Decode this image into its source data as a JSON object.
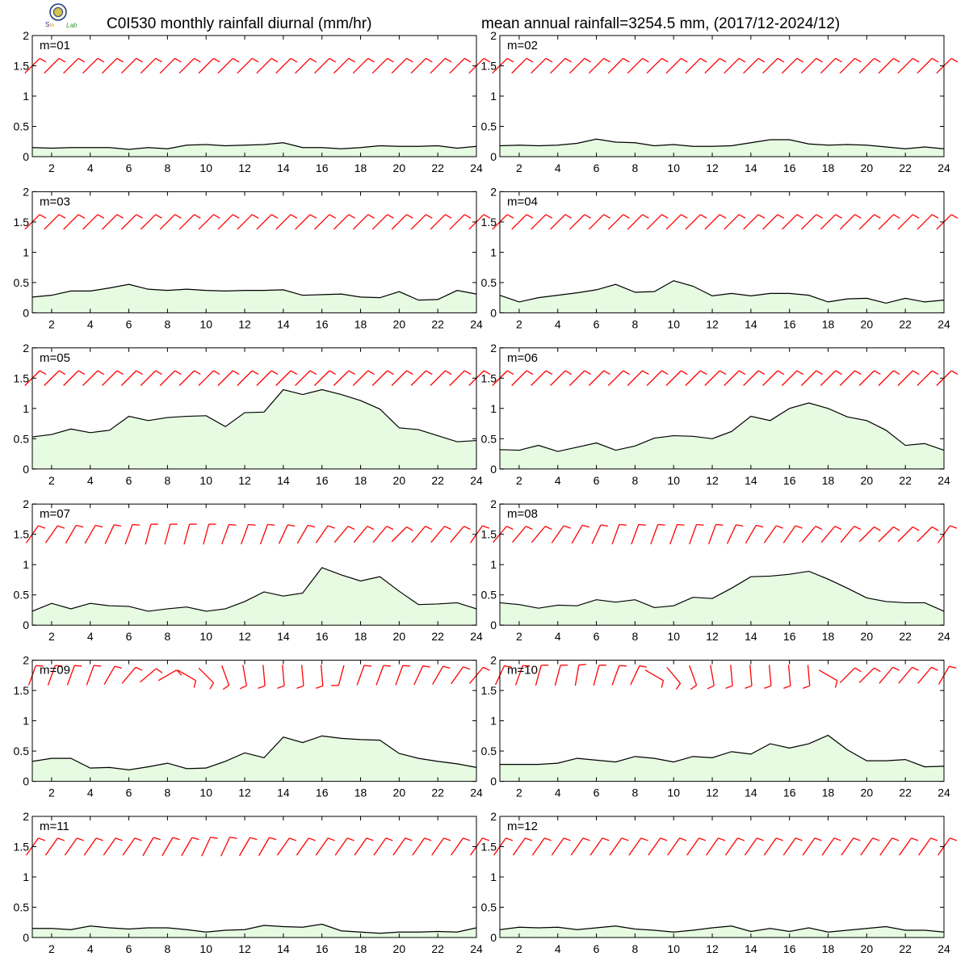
{
  "header": {
    "title_left": "C0I530 monthly rainfall diurnal (mm/hr)",
    "title_right": "mean annual rainfall=3254.5 mm, (2017/12-2024/12)"
  },
  "colors": {
    "rain_fill": "#e6fbe2",
    "rain_line": "#000000",
    "wind_barb": "#ff0000",
    "frame": "#000000"
  },
  "chart_data": [
    {
      "type": "area",
      "label": "m=01",
      "x": [
        1,
        2,
        3,
        4,
        5,
        6,
        7,
        8,
        9,
        10,
        11,
        12,
        13,
        14,
        15,
        16,
        17,
        18,
        19,
        20,
        21,
        22,
        23,
        24
      ],
      "values": [
        0.15,
        0.14,
        0.15,
        0.15,
        0.15,
        0.12,
        0.15,
        0.13,
        0.19,
        0.2,
        0.18,
        0.19,
        0.2,
        0.23,
        0.15,
        0.15,
        0.13,
        0.15,
        0.18,
        0.17,
        0.17,
        0.18,
        0.14,
        0.17
      ],
      "xticks": [
        2,
        4,
        6,
        8,
        10,
        12,
        14,
        16,
        18,
        20,
        22,
        24
      ],
      "yticks": [
        0,
        0.5,
        1,
        1.5,
        2
      ],
      "xlim": [
        1,
        24
      ],
      "ylim": [
        0,
        2
      ]
    },
    {
      "type": "area",
      "label": "m=02",
      "x": [
        1,
        2,
        3,
        4,
        5,
        6,
        7,
        8,
        9,
        10,
        11,
        12,
        13,
        14,
        15,
        16,
        17,
        18,
        19,
        20,
        21,
        22,
        23,
        24
      ],
      "values": [
        0.18,
        0.19,
        0.18,
        0.19,
        0.22,
        0.29,
        0.24,
        0.23,
        0.18,
        0.2,
        0.17,
        0.17,
        0.18,
        0.23,
        0.28,
        0.28,
        0.21,
        0.19,
        0.2,
        0.19,
        0.16,
        0.13,
        0.16,
        0.13
      ],
      "xticks": [
        2,
        4,
        6,
        8,
        10,
        12,
        14,
        16,
        18,
        20,
        22,
        24
      ],
      "yticks": [
        0,
        0.5,
        1,
        1.5,
        2
      ],
      "xlim": [
        1,
        24
      ],
      "ylim": [
        0,
        2
      ]
    },
    {
      "type": "area",
      "label": "m=03",
      "x": [
        1,
        2,
        3,
        4,
        5,
        6,
        7,
        8,
        9,
        10,
        11,
        12,
        13,
        14,
        15,
        16,
        17,
        18,
        19,
        20,
        21,
        22,
        23,
        24
      ],
      "values": [
        0.26,
        0.29,
        0.36,
        0.36,
        0.41,
        0.47,
        0.39,
        0.37,
        0.39,
        0.37,
        0.36,
        0.37,
        0.37,
        0.38,
        0.29,
        0.3,
        0.31,
        0.26,
        0.25,
        0.35,
        0.21,
        0.22,
        0.37,
        0.31
      ],
      "xticks": [
        2,
        4,
        6,
        8,
        10,
        12,
        14,
        16,
        18,
        20,
        22,
        24
      ],
      "yticks": [
        0,
        0.5,
        1,
        1.5,
        2
      ],
      "xlim": [
        1,
        24
      ],
      "ylim": [
        0,
        2
      ]
    },
    {
      "type": "area",
      "label": "m=04",
      "x": [
        1,
        2,
        3,
        4,
        5,
        6,
        7,
        8,
        9,
        10,
        11,
        12,
        13,
        14,
        15,
        16,
        17,
        18,
        19,
        20,
        21,
        22,
        23,
        24
      ],
      "values": [
        0.29,
        0.18,
        0.25,
        0.29,
        0.33,
        0.38,
        0.47,
        0.34,
        0.35,
        0.53,
        0.44,
        0.28,
        0.32,
        0.28,
        0.32,
        0.32,
        0.29,
        0.18,
        0.23,
        0.24,
        0.16,
        0.24,
        0.18,
        0.21
      ],
      "xticks": [
        2,
        4,
        6,
        8,
        10,
        12,
        14,
        16,
        18,
        20,
        22,
        24
      ],
      "yticks": [
        0,
        0.5,
        1,
        1.5,
        2
      ],
      "xlim": [
        1,
        24
      ],
      "ylim": [
        0,
        2
      ]
    },
    {
      "type": "area",
      "label": "m=05",
      "x": [
        1,
        2,
        3,
        4,
        5,
        6,
        7,
        8,
        9,
        10,
        11,
        12,
        13,
        14,
        15,
        16,
        17,
        18,
        19,
        20,
        21,
        22,
        23,
        24
      ],
      "values": [
        0.53,
        0.57,
        0.66,
        0.6,
        0.64,
        0.87,
        0.8,
        0.85,
        0.87,
        0.88,
        0.7,
        0.93,
        0.94,
        1.31,
        1.23,
        1.31,
        1.23,
        1.13,
        0.99,
        0.68,
        0.65,
        0.55,
        0.45,
        0.47
      ],
      "xticks": [
        2,
        4,
        6,
        8,
        10,
        12,
        14,
        16,
        18,
        20,
        22,
        24
      ],
      "yticks": [
        0,
        0.5,
        1,
        1.5,
        2
      ],
      "xlim": [
        1,
        24
      ],
      "ylim": [
        0,
        2
      ]
    },
    {
      "type": "area",
      "label": "m=06",
      "x": [
        1,
        2,
        3,
        4,
        5,
        6,
        7,
        8,
        9,
        10,
        11,
        12,
        13,
        14,
        15,
        16,
        17,
        18,
        19,
        20,
        21,
        22,
        23,
        24
      ],
      "values": [
        0.32,
        0.31,
        0.39,
        0.29,
        0.36,
        0.43,
        0.31,
        0.38,
        0.51,
        0.55,
        0.54,
        0.5,
        0.62,
        0.87,
        0.8,
        1.0,
        1.09,
        1.0,
        0.86,
        0.8,
        0.64,
        0.39,
        0.42,
        0.31
      ],
      "xticks": [
        2,
        4,
        6,
        8,
        10,
        12,
        14,
        16,
        18,
        20,
        22,
        24
      ],
      "yticks": [
        0,
        0.5,
        1,
        1.5,
        2
      ],
      "xlim": [
        1,
        24
      ],
      "ylim": [
        0,
        2
      ]
    },
    {
      "type": "area",
      "label": "m=07",
      "x": [
        1,
        2,
        3,
        4,
        5,
        6,
        7,
        8,
        9,
        10,
        11,
        12,
        13,
        14,
        15,
        16,
        17,
        18,
        19,
        20,
        21,
        22,
        23,
        24
      ],
      "values": [
        0.23,
        0.36,
        0.27,
        0.36,
        0.32,
        0.31,
        0.23,
        0.27,
        0.3,
        0.23,
        0.27,
        0.39,
        0.55,
        0.48,
        0.53,
        0.95,
        0.83,
        0.73,
        0.8,
        0.56,
        0.34,
        0.35,
        0.37,
        0.27
      ],
      "xticks": [
        2,
        4,
        6,
        8,
        10,
        12,
        14,
        16,
        18,
        20,
        22,
        24
      ],
      "yticks": [
        0,
        0.5,
        1,
        1.5,
        2
      ],
      "xlim": [
        1,
        24
      ],
      "ylim": [
        0,
        2
      ]
    },
    {
      "type": "area",
      "label": "m=08",
      "x": [
        1,
        2,
        3,
        4,
        5,
        6,
        7,
        8,
        9,
        10,
        11,
        12,
        13,
        14,
        15,
        16,
        17,
        18,
        19,
        20,
        21,
        22,
        23,
        24
      ],
      "values": [
        0.37,
        0.34,
        0.28,
        0.33,
        0.32,
        0.42,
        0.38,
        0.42,
        0.29,
        0.32,
        0.46,
        0.44,
        0.61,
        0.8,
        0.81,
        0.84,
        0.89,
        0.76,
        0.61,
        0.45,
        0.39,
        0.37,
        0.37,
        0.23
      ],
      "xticks": [
        2,
        4,
        6,
        8,
        10,
        12,
        14,
        16,
        18,
        20,
        22,
        24
      ],
      "yticks": [
        0,
        0.5,
        1,
        1.5,
        2
      ],
      "xlim": [
        1,
        24
      ],
      "ylim": [
        0,
        2
      ]
    },
    {
      "type": "area",
      "label": "m=09",
      "x": [
        1,
        2,
        3,
        4,
        5,
        6,
        7,
        8,
        9,
        10,
        11,
        12,
        13,
        14,
        15,
        16,
        17,
        18,
        19,
        20,
        21,
        22,
        23,
        24
      ],
      "values": [
        0.33,
        0.38,
        0.38,
        0.22,
        0.23,
        0.19,
        0.24,
        0.3,
        0.21,
        0.22,
        0.33,
        0.47,
        0.39,
        0.73,
        0.64,
        0.75,
        0.71,
        0.69,
        0.68,
        0.46,
        0.38,
        0.33,
        0.29,
        0.23
      ],
      "xticks": [
        2,
        4,
        6,
        8,
        10,
        12,
        14,
        16,
        18,
        20,
        22,
        24
      ],
      "yticks": [
        0,
        0.5,
        1,
        1.5,
        2
      ],
      "xlim": [
        1,
        24
      ],
      "ylim": [
        0,
        2
      ]
    },
    {
      "type": "area",
      "label": "m=10",
      "x": [
        1,
        2,
        3,
        4,
        5,
        6,
        7,
        8,
        9,
        10,
        11,
        12,
        13,
        14,
        15,
        16,
        17,
        18,
        19,
        20,
        21,
        22,
        23,
        24
      ],
      "values": [
        0.28,
        0.28,
        0.28,
        0.3,
        0.38,
        0.35,
        0.32,
        0.41,
        0.38,
        0.32,
        0.41,
        0.39,
        0.49,
        0.45,
        0.62,
        0.55,
        0.62,
        0.76,
        0.52,
        0.34,
        0.34,
        0.36,
        0.24,
        0.25
      ],
      "xticks": [
        2,
        4,
        6,
        8,
        10,
        12,
        14,
        16,
        18,
        20,
        22,
        24
      ],
      "yticks": [
        0,
        0.5,
        1,
        1.5,
        2
      ],
      "xlim": [
        1,
        24
      ],
      "ylim": [
        0,
        2
      ]
    },
    {
      "type": "area",
      "label": "m=11",
      "x": [
        1,
        2,
        3,
        4,
        5,
        6,
        7,
        8,
        9,
        10,
        11,
        12,
        13,
        14,
        15,
        16,
        17,
        18,
        19,
        20,
        21,
        22,
        23,
        24
      ],
      "values": [
        0.15,
        0.15,
        0.13,
        0.19,
        0.16,
        0.14,
        0.16,
        0.16,
        0.13,
        0.09,
        0.12,
        0.13,
        0.2,
        0.18,
        0.17,
        0.22,
        0.11,
        0.09,
        0.07,
        0.09,
        0.09,
        0.1,
        0.09,
        0.16
      ],
      "xticks": [
        2,
        4,
        6,
        8,
        10,
        12,
        14,
        16,
        18,
        20,
        22,
        24
      ],
      "yticks": [
        0,
        0.5,
        1,
        1.5,
        2
      ],
      "xlim": [
        1,
        24
      ],
      "ylim": [
        0,
        2
      ]
    },
    {
      "type": "area",
      "label": "m=12",
      "x": [
        1,
        2,
        3,
        4,
        5,
        6,
        7,
        8,
        9,
        10,
        11,
        12,
        13,
        14,
        15,
        16,
        17,
        18,
        19,
        20,
        21,
        22,
        23,
        24
      ],
      "values": [
        0.13,
        0.17,
        0.16,
        0.17,
        0.13,
        0.16,
        0.19,
        0.14,
        0.12,
        0.09,
        0.12,
        0.16,
        0.19,
        0.1,
        0.15,
        0.1,
        0.16,
        0.09,
        0.12,
        0.15,
        0.18,
        0.12,
        0.12,
        0.09
      ],
      "xticks": [
        2,
        4,
        6,
        8,
        10,
        12,
        14,
        16,
        18,
        20,
        22,
        24
      ],
      "yticks": [
        0,
        0.5,
        1,
        1.5,
        2
      ],
      "xlim": [
        1,
        24
      ],
      "ylim": [
        0,
        2
      ]
    }
  ],
  "wind_barbs": [
    {
      "month": "01",
      "y": 1.5,
      "dir_deg": [
        225,
        225,
        225,
        225,
        225,
        225,
        225,
        225,
        225,
        225,
        225,
        225,
        225,
        225,
        225,
        225,
        225,
        225,
        225,
        225,
        225,
        225,
        225,
        225
      ]
    },
    {
      "month": "02",
      "y": 1.5,
      "dir_deg": [
        225,
        225,
        225,
        225,
        225,
        225,
        225,
        225,
        225,
        225,
        225,
        225,
        225,
        225,
        225,
        225,
        225,
        225,
        225,
        225,
        225,
        225,
        225,
        225
      ]
    },
    {
      "month": "03",
      "y": 1.5,
      "dir_deg": [
        225,
        225,
        225,
        225,
        225,
        225,
        225,
        225,
        225,
        225,
        225,
        225,
        225,
        225,
        225,
        225,
        225,
        225,
        225,
        225,
        225,
        225,
        225,
        225
      ]
    },
    {
      "month": "04",
      "y": 1.5,
      "dir_deg": [
        225,
        225,
        225,
        225,
        225,
        225,
        225,
        225,
        225,
        225,
        225,
        225,
        225,
        225,
        225,
        225,
        225,
        225,
        225,
        225,
        225,
        225,
        225,
        225
      ]
    },
    {
      "month": "05",
      "y": 1.5,
      "dir_deg": [
        225,
        225,
        225,
        225,
        225,
        225,
        225,
        225,
        225,
        225,
        225,
        225,
        225,
        225,
        225,
        225,
        225,
        225,
        225,
        225,
        225,
        225,
        225,
        225
      ]
    },
    {
      "month": "06",
      "y": 1.5,
      "dir_deg": [
        225,
        225,
        225,
        225,
        225,
        225,
        225,
        225,
        225,
        225,
        225,
        225,
        225,
        225,
        225,
        225,
        225,
        225,
        225,
        225,
        225,
        225,
        225,
        225
      ]
    },
    {
      "month": "07",
      "y": 1.5,
      "dir_deg": [
        215,
        215,
        210,
        210,
        205,
        200,
        195,
        195,
        195,
        195,
        200,
        200,
        200,
        205,
        210,
        215,
        220,
        220,
        220,
        225,
        220,
        220,
        220,
        215
      ]
    },
    {
      "month": "08",
      "y": 1.5,
      "dir_deg": [
        220,
        220,
        220,
        215,
        210,
        205,
        200,
        200,
        200,
        200,
        200,
        200,
        205,
        210,
        215,
        215,
        220,
        220,
        220,
        225,
        225,
        225,
        225,
        215
      ]
    },
    {
      "month": "09",
      "y": 1.75,
      "dir_deg": [
        200,
        200,
        200,
        200,
        210,
        220,
        230,
        240,
        300,
        315,
        340,
        350,
        355,
        355,
        355,
        355,
        15,
        200,
        200,
        200,
        205,
        210,
        215,
        220
      ]
    },
    {
      "month": "10",
      "y": 1.75,
      "dir_deg": [
        205,
        200,
        195,
        195,
        190,
        195,
        200,
        205,
        300,
        320,
        340,
        350,
        355,
        355,
        355,
        355,
        355,
        300,
        225,
        225,
        220,
        220,
        220,
        210
      ]
    },
    {
      "month": "11",
      "y": 1.5,
      "dir_deg": [
        215,
        215,
        215,
        215,
        215,
        215,
        210,
        210,
        210,
        205,
        205,
        210,
        210,
        215,
        215,
        215,
        215,
        215,
        215,
        215,
        215,
        215,
        215,
        215
      ]
    },
    {
      "month": "12",
      "y": 1.5,
      "dir_deg": [
        215,
        215,
        215,
        215,
        215,
        215,
        215,
        215,
        215,
        215,
        215,
        215,
        215,
        215,
        215,
        215,
        215,
        215,
        215,
        215,
        215,
        215,
        215,
        215
      ]
    }
  ]
}
